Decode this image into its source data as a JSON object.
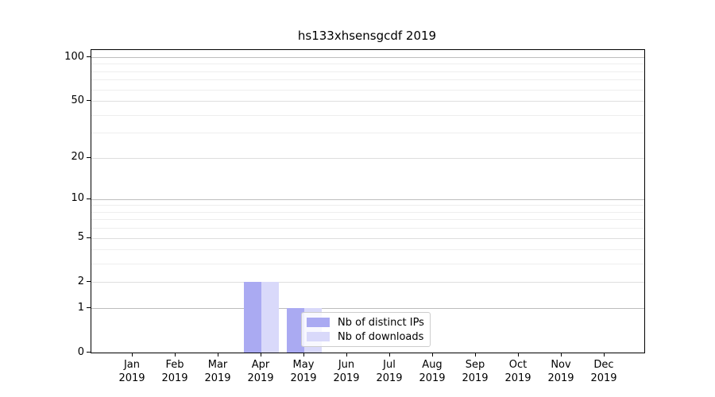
{
  "figure": {
    "title": "hs133xhsensgcdf 2019"
  },
  "chart_data": {
    "type": "bar",
    "title": "hs133xhsensgcdf 2019",
    "categories": [
      "Jan 2019",
      "Feb 2019",
      "Mar 2019",
      "Apr 2019",
      "May 2019",
      "Jun 2019",
      "Jul 2019",
      "Aug 2019",
      "Sep 2019",
      "Oct 2019",
      "Nov 2019",
      "Dec 2019"
    ],
    "month_labels": [
      "Jan",
      "Feb",
      "Mar",
      "Apr",
      "May",
      "Jun",
      "Jul",
      "Aug",
      "Sep",
      "Oct",
      "Nov",
      "Dec"
    ],
    "year_label": "2019",
    "series": [
      {
        "name": "Nb of distinct IPs",
        "color": "#aaaaf2",
        "values": [
          0,
          0,
          0,
          2,
          1,
          0,
          0,
          0,
          0,
          0,
          0,
          0
        ]
      },
      {
        "name": "Nb of downloads",
        "color": "#d9d9fa",
        "values": [
          0,
          0,
          0,
          2,
          1,
          0,
          0,
          0,
          0,
          0,
          0,
          0
        ]
      }
    ],
    "yscale": "log1p",
    "ylim": [
      0,
      112
    ],
    "yticks_labeled": [
      0,
      1,
      2,
      5,
      10,
      20,
      50,
      100
    ],
    "yticks_decade": [
      1,
      10,
      100
    ],
    "yticks_major_light": [
      2,
      5,
      20,
      50
    ],
    "yticks_minor": [
      3,
      4,
      6,
      7,
      8,
      9,
      30,
      40,
      60,
      70,
      80,
      90
    ],
    "grid": "horizontal",
    "legend_position": "inside-lower-center"
  },
  "legend": {
    "items": [
      {
        "label": "Nb of distinct IPs",
        "color": "#aaaaf2"
      },
      {
        "label": "Nb of downloads",
        "color": "#d9d9fa"
      }
    ]
  },
  "colors": {
    "background": "#ffffff",
    "axis": "#000000",
    "grid_decade": "#bdbdbd",
    "grid_major_light": "#dedede",
    "grid_minor": "#eeeeee",
    "bar_distinct_ips": "#aaaaf2",
    "bar_downloads": "#d9d9fa"
  }
}
